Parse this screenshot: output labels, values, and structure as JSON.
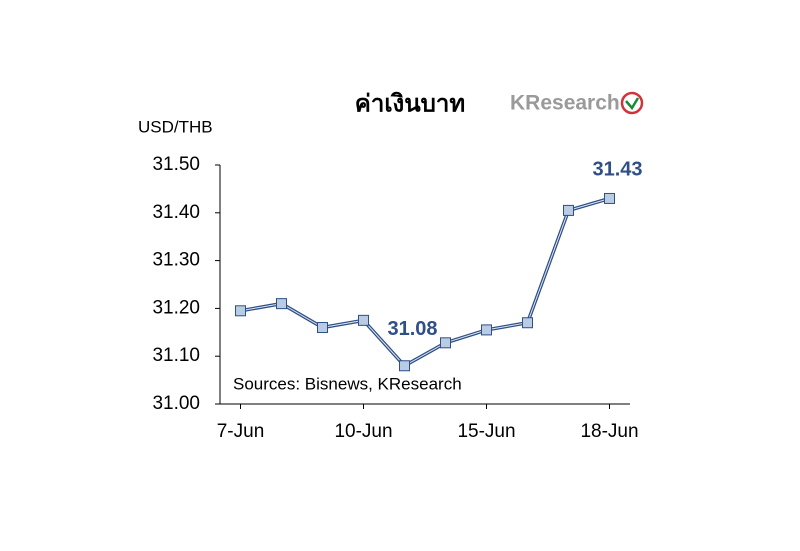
{
  "chart_data": {
    "type": "line",
    "title": "ค่าเงินบาท",
    "logo": "KResearch",
    "y_label": "USD/THB",
    "annotation": "Sources: Bisnews, KResearch",
    "categories": [
      "7-Jun",
      null,
      null,
      "10-Jun",
      null,
      null,
      "15-Jun",
      null,
      null,
      "18-Jun"
    ],
    "series": [
      {
        "name": "USD/THB",
        "color": "#2f4f86",
        "marker_color": "#b8cce4",
        "values": [
          31.195,
          31.21,
          31.16,
          31.175,
          31.08,
          31.128,
          31.155,
          31.17,
          31.405,
          31.43
        ],
        "value_labels": [
          null,
          null,
          null,
          null,
          "31.08",
          null,
          null,
          null,
          null,
          "31.43"
        ]
      }
    ],
    "ylim": [
      31.0,
      31.5
    ],
    "yticks": [
      {
        "value": 31.0,
        "label": "31.00"
      },
      {
        "value": 31.1,
        "label": "31.10"
      },
      {
        "value": 31.2,
        "label": "31.20"
      },
      {
        "value": 31.3,
        "label": "31.30"
      },
      {
        "value": 31.4,
        "label": "31.40"
      },
      {
        "value": 31.5,
        "label": "31.50"
      }
    ],
    "grid": false
  }
}
